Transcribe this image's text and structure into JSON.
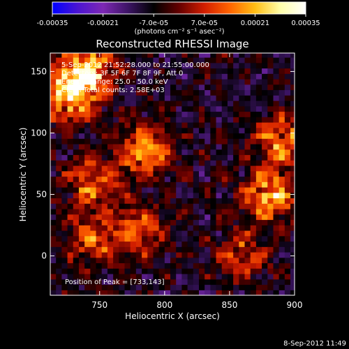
{
  "colorbar": {
    "tick_labels": [
      "-0.00035",
      "-0.00021",
      "-7.0e-05",
      "7.0e-05",
      "0.00021",
      "0.00035"
    ],
    "unit_label": "(photons cm⁻² s⁻¹ asec⁻²)",
    "range": [
      -0.00035,
      0.00035
    ],
    "colors": [
      "#0000ff",
      "#4b14d2",
      "#7d28b4",
      "#3c1464",
      "#000000",
      "#640000",
      "#d21e00",
      "#ff6400",
      "#ffbe14",
      "#ffffaa",
      "#ffffff"
    ]
  },
  "chart_data": {
    "type": "heatmap",
    "title": "Reconstructed RHESSI Image",
    "xlabel": "Heliocentric X (arcsec)",
    "ylabel": "Heliocentric Y (arcsec)",
    "xlim": [
      712,
      900
    ],
    "ylim": [
      -32,
      165
    ],
    "x_ticks": [
      750,
      800,
      850,
      900
    ],
    "y_ticks": [
      0,
      50,
      100,
      150
    ],
    "annotations": [
      "5-Sep-2012 21:52:28.000 to 21:55:00.000",
      "Detectors: 3F 5F 6F 7F 8F 9F, Att 0",
      "Energy Range: 25.0 - 50.0 keV",
      "Clean    Total counts: 2.58E+03"
    ],
    "peak_label": "Position of Peak = [733,143]",
    "peak": [
      733,
      143
    ],
    "bright_regions": [
      {
        "x": 725,
        "y": 130,
        "intensity": 0.0003
      },
      {
        "x": 740,
        "y": 150,
        "intensity": 0.00035
      },
      {
        "x": 785,
        "y": 85,
        "intensity": 0.00028
      },
      {
        "x": 880,
        "y": 50,
        "intensity": 0.0003
      },
      {
        "x": 890,
        "y": 95,
        "intensity": 0.00025
      },
      {
        "x": 745,
        "y": 60,
        "intensity": 0.00022
      },
      {
        "x": 780,
        "y": 20,
        "intensity": 0.0002
      },
      {
        "x": 860,
        "y": 0,
        "intensity": 0.00018
      },
      {
        "x": 745,
        "y": 15,
        "intensity": 0.00018
      }
    ]
  },
  "footer": {
    "timestamp": "8-Sep-2012 11:49"
  }
}
